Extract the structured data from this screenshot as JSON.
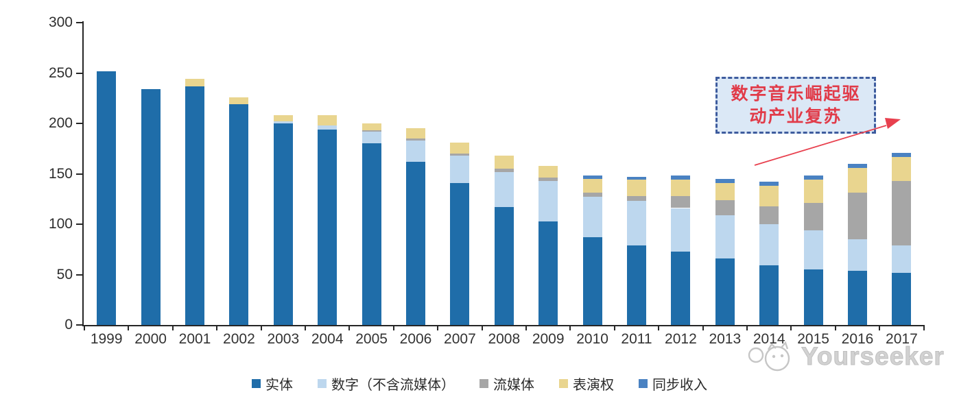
{
  "chart_data": {
    "type": "bar",
    "stacked": true,
    "title": "",
    "xlabel": "",
    "ylabel": "",
    "ylim": [
      0,
      300
    ],
    "yticks": [
      "0",
      "50",
      "100",
      "150",
      "200",
      "250",
      "300"
    ],
    "grid": false,
    "legend_position": "bottom",
    "categories": [
      "1999",
      "2000",
      "2001",
      "2002",
      "2003",
      "2004",
      "2005",
      "2006",
      "2007",
      "2008",
      "2009",
      "2010",
      "2011",
      "2012",
      "2013",
      "2014",
      "2015",
      "2016",
      "2017"
    ],
    "series": [
      {
        "name": "实体",
        "color": "#1F6DA9",
        "values": [
          252,
          234,
          237,
          219,
          200,
          194,
          180,
          162,
          141,
          117,
          103,
          87,
          79,
          73,
          66,
          59,
          55,
          54,
          52
        ]
      },
      {
        "name": "数字（不含流媒体）",
        "color": "#BDD7EE",
        "values": [
          0,
          0,
          0,
          0,
          2,
          4,
          12,
          21,
          27,
          35,
          40,
          40,
          44,
          43,
          43,
          41,
          39,
          31,
          27
        ]
      },
      {
        "name": "流媒体",
        "color": "#A6A6A6",
        "values": [
          0,
          0,
          0,
          0,
          0,
          0,
          1,
          2,
          2,
          3,
          3,
          4,
          5,
          12,
          15,
          18,
          27,
          46,
          64
        ]
      },
      {
        "name": "表演权",
        "color": "#E9D58F",
        "values": [
          0,
          0,
          7,
          7,
          6,
          10,
          7,
          10,
          11,
          13,
          12,
          14,
          16,
          16,
          17,
          20,
          23,
          25,
          24
        ]
      },
      {
        "name": "同步收入",
        "color": "#4A82C2",
        "values": [
          0,
          0,
          0,
          0,
          0,
          0,
          0,
          0,
          0,
          0,
          0,
          3,
          3,
          4,
          4,
          4,
          4,
          4,
          4
        ]
      }
    ]
  },
  "annotation": {
    "line1": "数字音乐崛起驱",
    "line2": "动产业复苏",
    "text_color": "#E13B49",
    "box_fill": "#DBE8F6",
    "box_border": "#3E5C9E",
    "arrow_color": "#E8404E"
  },
  "watermark": {
    "brand": "Yourseeker"
  }
}
